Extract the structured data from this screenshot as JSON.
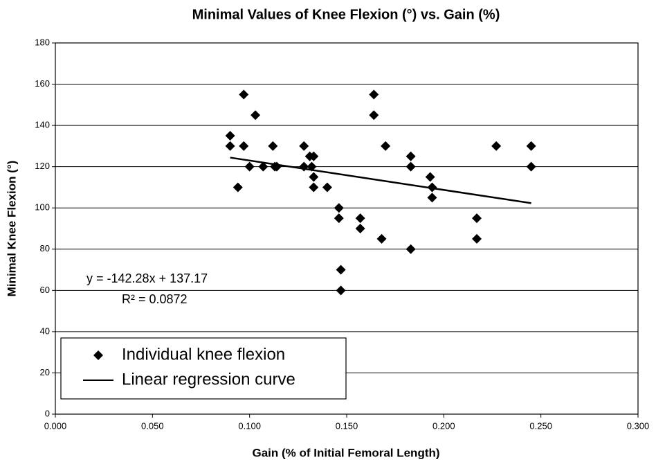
{
  "chart_data": {
    "type": "scatter",
    "title": "Minimal Values of Knee Flexion (°) vs. Gain (%)",
    "x_label": "Gain (% of Initial Femoral Length)",
    "y_label": "Minimal Knee Flexion (°)",
    "annotations": [
      "y = -142.28x + 137.17",
      "R² = 0.0872"
    ],
    "xlim": [
      0,
      0.3
    ],
    "ylim": [
      0,
      180
    ],
    "xticks": [
      {
        "value": 0,
        "label": "0.000"
      },
      {
        "value": 0.05,
        "label": "0.050"
      },
      {
        "value": 0.1,
        "label": "0.100"
      },
      {
        "value": 0.15,
        "label": "0.150"
      },
      {
        "value": 0.2,
        "label": "0.200"
      },
      {
        "value": 0.25,
        "label": "0.250"
      },
      {
        "value": 0.3,
        "label": "0.300"
      }
    ],
    "yticks": [
      0,
      20,
      40,
      60,
      80,
      100,
      120,
      140,
      160,
      180
    ],
    "grid": true,
    "legend": "bottom-left",
    "series": [
      {
        "name": "Individual knee flexion",
        "type": "scatter",
        "color": "#000000",
        "x": [
          0.09,
          0.09,
          0.094,
          0.097,
          0.097,
          0.1,
          0.103,
          0.107,
          0.112,
          0.113,
          0.114,
          0.128,
          0.128,
          0.131,
          0.132,
          0.133,
          0.133,
          0.133,
          0.14,
          0.146,
          0.146,
          0.147,
          0.147,
          0.157,
          0.157,
          0.164,
          0.164,
          0.168,
          0.17,
          0.183,
          0.183,
          0.183,
          0.193,
          0.194,
          0.194,
          0.217,
          0.217,
          0.227,
          0.245,
          0.245
        ],
        "values": [
          135,
          130,
          110,
          155,
          130,
          120,
          145,
          120,
          130,
          120,
          120,
          130,
          120,
          125,
          120,
          125,
          115,
          110,
          110,
          100,
          95,
          70,
          60,
          95,
          90,
          155,
          145,
          85,
          130,
          125,
          120,
          80,
          115,
          110,
          105,
          95,
          85,
          130,
          130,
          120
        ]
      },
      {
        "name": "Linear regression curve",
        "type": "line",
        "color": "#000000",
        "x": [
          0.09,
          0.245
        ],
        "values": [
          124.4,
          102.3
        ]
      }
    ]
  }
}
